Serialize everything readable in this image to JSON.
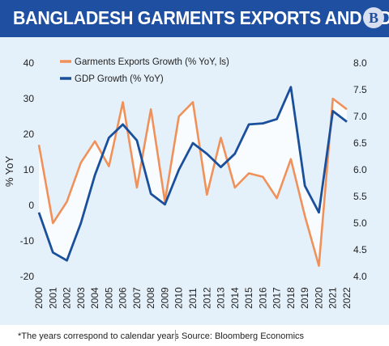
{
  "header": {
    "title": "BANGLADESH GARMENTS EXPORTS AND GDP",
    "logo_letter": "B"
  },
  "footer": {
    "note": "*The years correspond to calendar years",
    "source": "Source: Bloomberg Economics"
  },
  "colors": {
    "header_bg": "#1e4fa0",
    "plot_bg": "#e5f1fa",
    "exports": "#f0915a",
    "gdp": "#1a4f9c",
    "fill": "#ffffff"
  },
  "chart_data": {
    "type": "line",
    "x": [
      "2000",
      "2001",
      "2002",
      "2003",
      "2004",
      "2005",
      "2006",
      "2007",
      "2008",
      "2009",
      "2010",
      "2011",
      "2012",
      "2013",
      "2014",
      "2015",
      "2016",
      "2017",
      "2018",
      "2019",
      "2020",
      "2021",
      "2022"
    ],
    "series": [
      {
        "name": "Garments Exports Growth (% YoY, ls)",
        "axis": "left",
        "color": "#f0915a",
        "values": [
          17,
          -5,
          1,
          12,
          18,
          11,
          29,
          5,
          27,
          1,
          25,
          29,
          3,
          19,
          5,
          9,
          8,
          2,
          13,
          -3,
          -17,
          30,
          27
        ]
      },
      {
        "name": "GDP Growth (% YoY)",
        "axis": "right",
        "color": "#1a4f9c",
        "values": [
          5.2,
          4.45,
          4.3,
          5.0,
          5.9,
          6.6,
          6.85,
          6.55,
          5.55,
          5.35,
          6.0,
          6.5,
          6.3,
          6.05,
          6.3,
          6.85,
          6.87,
          6.95,
          7.55,
          5.7,
          5.2,
          7.1,
          6.9
        ]
      }
    ],
    "yaxis_left": {
      "label": "% YoY",
      "min": -20,
      "max": 40,
      "ticks": [
        "40",
        "30",
        "20",
        "10",
        "0",
        "-10",
        "-20"
      ]
    },
    "yaxis_right": {
      "min": 4.0,
      "max": 8.0,
      "ticks": [
        "8.0",
        "7.5",
        "7.0",
        "6.5",
        "6.0",
        "5.5",
        "5.0",
        "4.5",
        "4.0"
      ]
    },
    "grid": false,
    "legend_position": "top-left",
    "shaded_between_series": true
  }
}
